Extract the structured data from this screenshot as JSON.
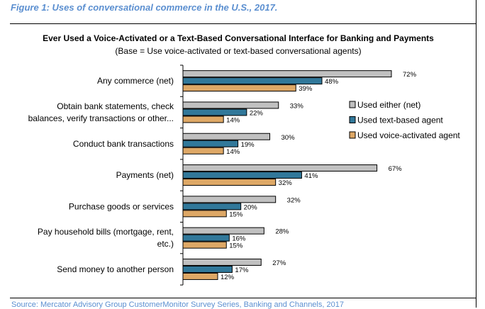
{
  "figure_caption": "Figure 1: Uses of conversational commerce in the U.S., 2017.",
  "source": "Source: Mercator Advisory Group CustomerMonitor Survey Series, Banking and Channels, 2017",
  "chart_data": {
    "type": "bar",
    "orientation": "horizontal",
    "title": "Ever Used a Voice-Activated or a Text-Based Conversational Interface for Banking and Payments",
    "subtitle": "(Base = Use voice-activated or text-based conversational agents)",
    "xlabel": "",
    "ylabel": "",
    "xlim": [
      0,
      100
    ],
    "grid": false,
    "legend_position": "right",
    "categories": [
      [
        "Any commerce (net)"
      ],
      [
        "Obtain bank statements, check",
        "balances, verify transactions or other..."
      ],
      [
        "Conduct bank transactions"
      ],
      [
        "Payments (net)"
      ],
      [
        "Purchase goods or services"
      ],
      [
        "Pay household bills (mortgage, rent,",
        "etc.)"
      ],
      [
        "Send money to another person"
      ]
    ],
    "series": [
      {
        "name": "Used either (net)",
        "color": "#c0c0c0",
        "values": [
          72,
          33,
          30,
          67,
          32,
          28,
          27
        ]
      },
      {
        "name": "Used text-based agent",
        "color": "#31789a",
        "values": [
          48,
          22,
          19,
          41,
          20,
          16,
          17
        ]
      },
      {
        "name": "Used voice-activated agent",
        "color": "#dea866",
        "values": [
          39,
          14,
          14,
          32,
          15,
          15,
          12
        ]
      }
    ],
    "value_suffix": "%"
  }
}
